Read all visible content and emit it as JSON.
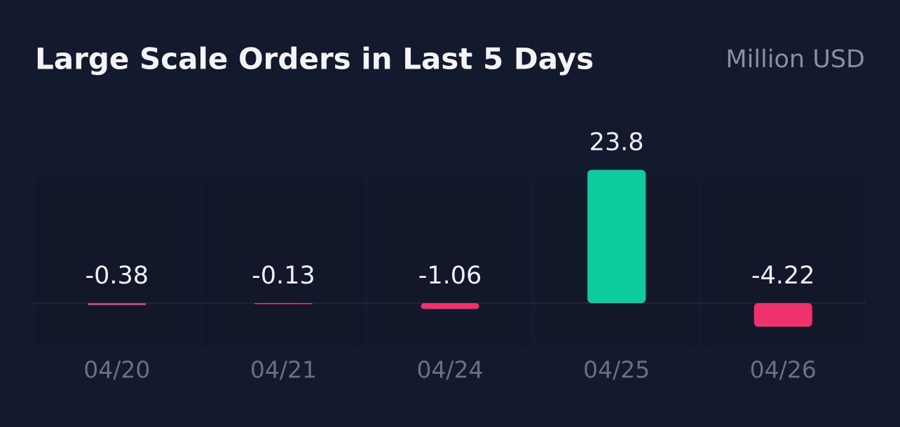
{
  "chart_data": {
    "type": "bar",
    "title": "Large Scale Orders in Last 5 Days",
    "unit": "Million USD",
    "categories": [
      "04/20",
      "04/21",
      "04/24",
      "04/25",
      "04/26"
    ],
    "values": [
      -0.38,
      -0.13,
      -1.06,
      23.8,
      -4.22
    ],
    "colors": {
      "positive": "#0ecb9d",
      "negative": "#f0326c"
    }
  }
}
